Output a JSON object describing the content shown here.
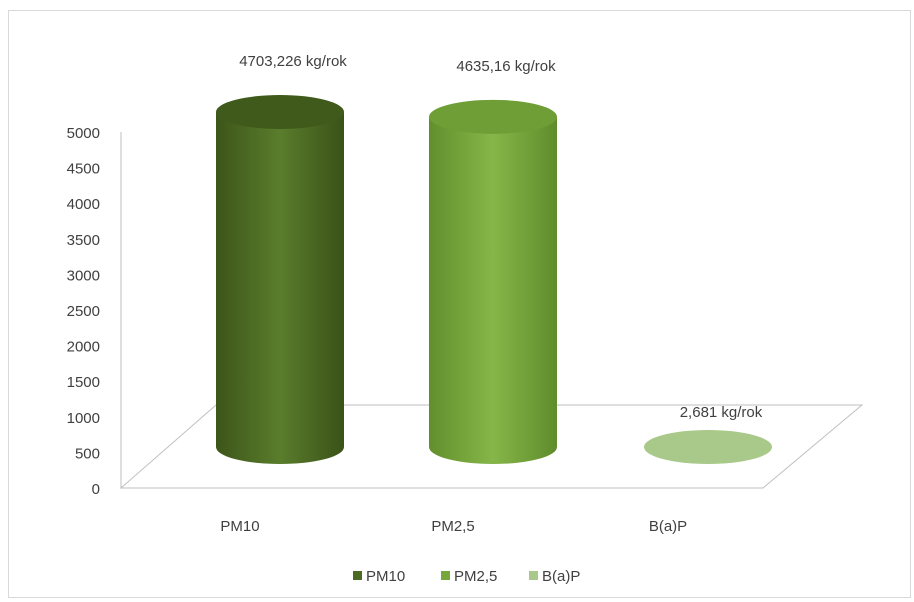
{
  "chart_data": {
    "type": "bar",
    "style": "3d-cylinder",
    "categories": [
      "PM10",
      "PM2,5",
      "B(a)P"
    ],
    "values": [
      4703.226,
      4635.16,
      2.681
    ],
    "data_labels": [
      "4703,226 kg/rok",
      "4635,16 kg/rok",
      "2,681 kg/rok"
    ],
    "colors": [
      "#4b6a22",
      "#76a83a",
      "#a9c98a"
    ],
    "legend": [
      "PM10",
      "PM2,5",
      "B(a)P"
    ],
    "legend_position": "bottom",
    "y_ticks": [
      "0",
      "500",
      "1000",
      "1500",
      "2000",
      "2500",
      "3000",
      "3500",
      "4000",
      "4500",
      "5000"
    ],
    "ylim": [
      0,
      5000
    ],
    "grid": false,
    "title": "",
    "xlabel": "",
    "ylabel": ""
  }
}
